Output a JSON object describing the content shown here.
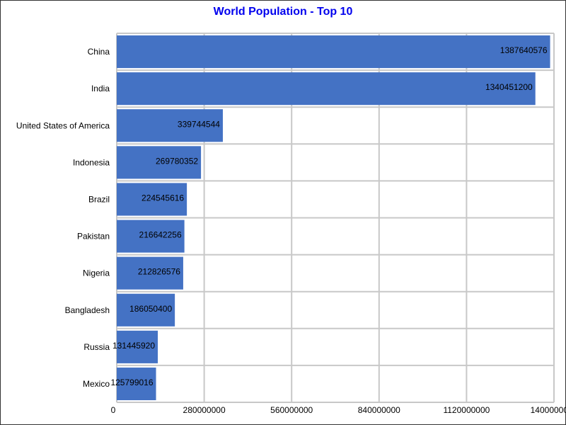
{
  "colors": {
    "title": "#0000ee",
    "bar": "#4472c4",
    "grid": "#c8c8c8",
    "text": "#000000"
  },
  "chart_data": {
    "type": "bar",
    "orientation": "horizontal",
    "title": "World Population - Top 10",
    "xlabel": "",
    "ylabel": "",
    "xlim": [
      0,
      1400000000
    ],
    "x_ticks": [
      0,
      280000000,
      560000000,
      840000000,
      1120000000,
      1400000000
    ],
    "x_tick_labels": [
      "0",
      "280000000",
      "560000000",
      "840000000",
      "1120000000",
      "1400000000"
    ],
    "grid": true,
    "categories": [
      "China",
      "India",
      "United States of America",
      "Indonesia",
      "Brazil",
      "Pakistan",
      "Nigeria",
      "Bangladesh",
      "Russia",
      "Mexico"
    ],
    "values": [
      1387640576,
      1340451200,
      339744544,
      269780352,
      224545616,
      216642256,
      212826576,
      186050400,
      131445920,
      125799016
    ],
    "value_labels": [
      "1387640576",
      "1340451200",
      "339744544",
      "269780352",
      "224545616",
      "216642256",
      "212826576",
      "186050400",
      "131445920",
      "125799016"
    ]
  }
}
